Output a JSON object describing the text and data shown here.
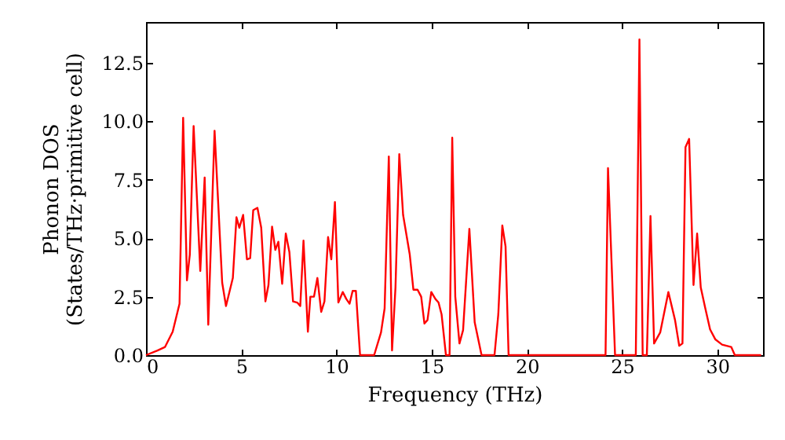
{
  "chart_data": {
    "type": "line",
    "xlabel": "Frequency (THz)",
    "ylabel": "Phonon DOS\n(States/THz·primitive cell)",
    "xlim": [
      0,
      32.4
    ],
    "ylim": [
      0,
      14.25
    ],
    "xticks": [
      0,
      5,
      10,
      15,
      20,
      25,
      30
    ],
    "yticks": [
      {
        "value": 0,
        "label": "0.0"
      },
      {
        "value": 2.5,
        "label": "2.5"
      },
      {
        "value": 5,
        "label": "5.0"
      },
      {
        "value": 7.5,
        "label": "7.5"
      },
      {
        "value": 10,
        "label": "10.0"
      },
      {
        "value": 12.5,
        "label": "12.5"
      }
    ],
    "grid": false,
    "marker": "none",
    "line_style": "solid",
    "series": [
      {
        "color": "#ff0000",
        "x": [
          0,
          0.6,
          1.0,
          1.4,
          1.76,
          1.95,
          2.15,
          2.3,
          2.5,
          2.85,
          3.08,
          3.27,
          3.6,
          4.0,
          4.2,
          4.56,
          4.75,
          4.9,
          5.1,
          5.3,
          5.47,
          5.63,
          5.85,
          6.05,
          6.27,
          6.43,
          6.62,
          6.79,
          6.95,
          7.15,
          7.34,
          7.53,
          7.72,
          7.94,
          8.1,
          8.27,
          8.5,
          8.63,
          8.82,
          9.0,
          9.2,
          9.37,
          9.56,
          9.73,
          9.92,
          10.1,
          10.33,
          10.52,
          10.69,
          10.85,
          11.02,
          11.24,
          11.98,
          12.34,
          12.53,
          12.75,
          12.92,
          13.1,
          13.3,
          13.5,
          13.85,
          14.04,
          14.26,
          14.45,
          14.62,
          14.78,
          14.98,
          15.2,
          15.36,
          15.52,
          15.75,
          15.94,
          16.08,
          16.24,
          16.46,
          16.65,
          16.98,
          17.26,
          17.62,
          18.3,
          18.5,
          18.71,
          18.88,
          19.04,
          24.13,
          24.26,
          24.63,
          25.72,
          25.91,
          26.08,
          26.3,
          26.49,
          26.68,
          27.0,
          27.43,
          27.78,
          28.0,
          28.17,
          28.33,
          28.52,
          28.75,
          28.94,
          29.13,
          29.37,
          29.62,
          29.9,
          30.25,
          30.73,
          30.92,
          32.3
        ],
        "values": [
          0,
          0.2,
          0.35,
          1.0,
          2.2,
          10.15,
          3.2,
          4.3,
          9.8,
          3.6,
          7.6,
          1.3,
          9.6,
          3.1,
          2.1,
          3.3,
          5.9,
          5.45,
          6.0,
          4.1,
          4.15,
          6.2,
          6.3,
          5.45,
          2.3,
          3.0,
          5.5,
          4.5,
          4.85,
          3.05,
          5.2,
          4.4,
          2.3,
          2.25,
          2.1,
          4.9,
          1.0,
          2.5,
          2.5,
          3.3,
          1.85,
          2.3,
          5.05,
          4.1,
          6.55,
          2.25,
          2.7,
          2.4,
          2.2,
          2.75,
          2.75,
          0,
          0,
          0.97,
          2.0,
          8.5,
          0.2,
          2.9,
          8.6,
          6.0,
          4.3,
          2.8,
          2.8,
          2.5,
          1.35,
          1.5,
          2.7,
          2.4,
          2.25,
          1.75,
          0,
          0,
          9.3,
          2.5,
          0.5,
          1.07,
          5.4,
          1.4,
          0,
          0,
          1.75,
          5.55,
          4.65,
          0,
          0,
          8.0,
          0,
          0,
          13.5,
          0,
          0,
          5.95,
          0.5,
          0.97,
          2.7,
          1.5,
          0.4,
          0.5,
          8.9,
          9.25,
          3.0,
          5.2,
          2.9,
          2.0,
          1.1,
          0.67,
          0.45,
          0.35,
          0,
          0
        ]
      }
    ]
  }
}
